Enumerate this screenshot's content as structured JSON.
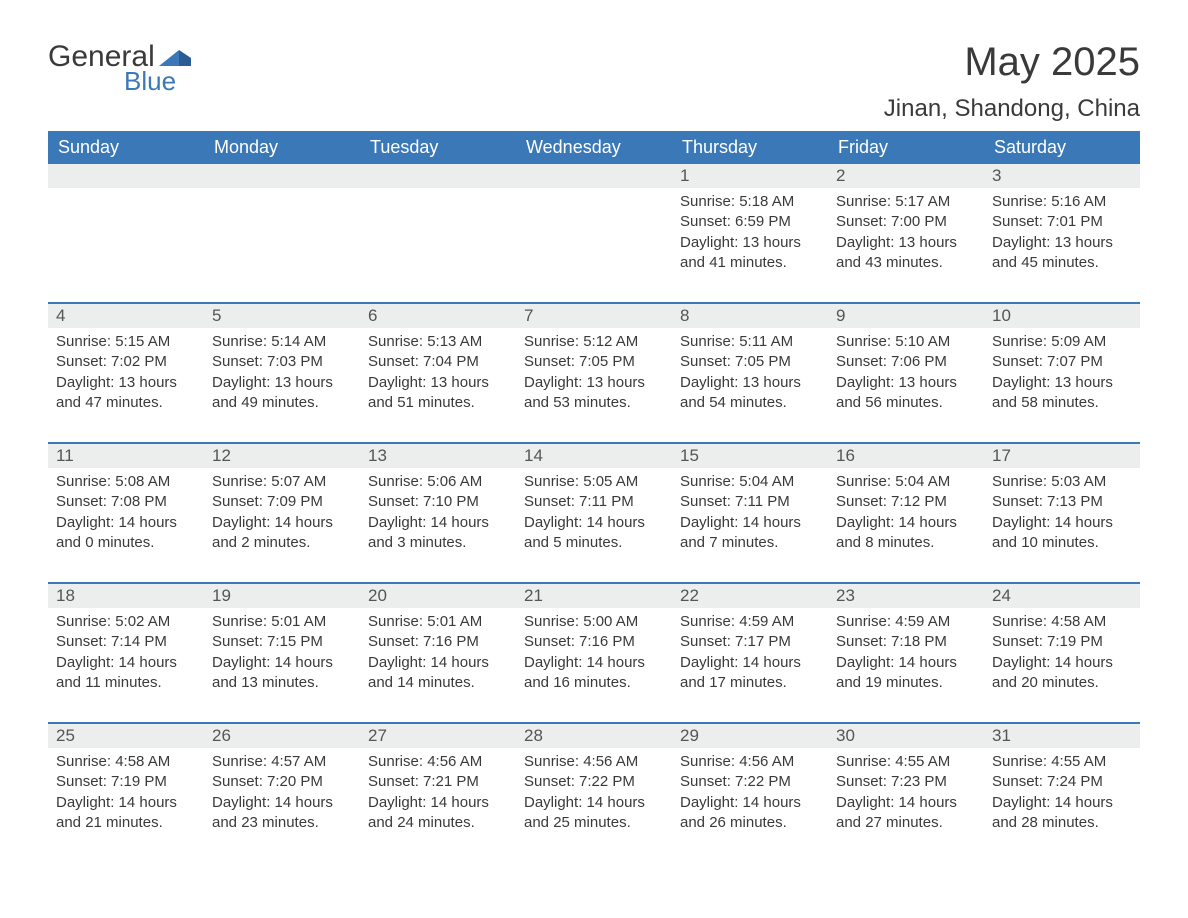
{
  "logo": {
    "text_general": "General",
    "text_blue": "Blue"
  },
  "title": "May 2025",
  "location": "Jinan, Shandong, China",
  "colors": {
    "header_bg": "#3b78b7",
    "header_text": "#ffffff",
    "daynum_bg": "#eceded",
    "daynum_border": "#3b78b7",
    "body_text": "#3a3a3a",
    "logo_blue": "#3b78b7"
  },
  "day_headers": [
    "Sunday",
    "Monday",
    "Tuesday",
    "Wednesday",
    "Thursday",
    "Friday",
    "Saturday"
  ],
  "weeks": [
    [
      null,
      null,
      null,
      null,
      {
        "n": "1",
        "sunrise": "5:18 AM",
        "sunset": "6:59 PM",
        "day_h": "13",
        "day_m": "41"
      },
      {
        "n": "2",
        "sunrise": "5:17 AM",
        "sunset": "7:00 PM",
        "day_h": "13",
        "day_m": "43"
      },
      {
        "n": "3",
        "sunrise": "5:16 AM",
        "sunset": "7:01 PM",
        "day_h": "13",
        "day_m": "45"
      }
    ],
    [
      {
        "n": "4",
        "sunrise": "5:15 AM",
        "sunset": "7:02 PM",
        "day_h": "13",
        "day_m": "47"
      },
      {
        "n": "5",
        "sunrise": "5:14 AM",
        "sunset": "7:03 PM",
        "day_h": "13",
        "day_m": "49"
      },
      {
        "n": "6",
        "sunrise": "5:13 AM",
        "sunset": "7:04 PM",
        "day_h": "13",
        "day_m": "51"
      },
      {
        "n": "7",
        "sunrise": "5:12 AM",
        "sunset": "7:05 PM",
        "day_h": "13",
        "day_m": "53"
      },
      {
        "n": "8",
        "sunrise": "5:11 AM",
        "sunset": "7:05 PM",
        "day_h": "13",
        "day_m": "54"
      },
      {
        "n": "9",
        "sunrise": "5:10 AM",
        "sunset": "7:06 PM",
        "day_h": "13",
        "day_m": "56"
      },
      {
        "n": "10",
        "sunrise": "5:09 AM",
        "sunset": "7:07 PM",
        "day_h": "13",
        "day_m": "58"
      }
    ],
    [
      {
        "n": "11",
        "sunrise": "5:08 AM",
        "sunset": "7:08 PM",
        "day_h": "14",
        "day_m": "0"
      },
      {
        "n": "12",
        "sunrise": "5:07 AM",
        "sunset": "7:09 PM",
        "day_h": "14",
        "day_m": "2"
      },
      {
        "n": "13",
        "sunrise": "5:06 AM",
        "sunset": "7:10 PM",
        "day_h": "14",
        "day_m": "3"
      },
      {
        "n": "14",
        "sunrise": "5:05 AM",
        "sunset": "7:11 PM",
        "day_h": "14",
        "day_m": "5"
      },
      {
        "n": "15",
        "sunrise": "5:04 AM",
        "sunset": "7:11 PM",
        "day_h": "14",
        "day_m": "7"
      },
      {
        "n": "16",
        "sunrise": "5:04 AM",
        "sunset": "7:12 PM",
        "day_h": "14",
        "day_m": "8"
      },
      {
        "n": "17",
        "sunrise": "5:03 AM",
        "sunset": "7:13 PM",
        "day_h": "14",
        "day_m": "10"
      }
    ],
    [
      {
        "n": "18",
        "sunrise": "5:02 AM",
        "sunset": "7:14 PM",
        "day_h": "14",
        "day_m": "11"
      },
      {
        "n": "19",
        "sunrise": "5:01 AM",
        "sunset": "7:15 PM",
        "day_h": "14",
        "day_m": "13"
      },
      {
        "n": "20",
        "sunrise": "5:01 AM",
        "sunset": "7:16 PM",
        "day_h": "14",
        "day_m": "14"
      },
      {
        "n": "21",
        "sunrise": "5:00 AM",
        "sunset": "7:16 PM",
        "day_h": "14",
        "day_m": "16"
      },
      {
        "n": "22",
        "sunrise": "4:59 AM",
        "sunset": "7:17 PM",
        "day_h": "14",
        "day_m": "17"
      },
      {
        "n": "23",
        "sunrise": "4:59 AM",
        "sunset": "7:18 PM",
        "day_h": "14",
        "day_m": "19"
      },
      {
        "n": "24",
        "sunrise": "4:58 AM",
        "sunset": "7:19 PM",
        "day_h": "14",
        "day_m": "20"
      }
    ],
    [
      {
        "n": "25",
        "sunrise": "4:58 AM",
        "sunset": "7:19 PM",
        "day_h": "14",
        "day_m": "21"
      },
      {
        "n": "26",
        "sunrise": "4:57 AM",
        "sunset": "7:20 PM",
        "day_h": "14",
        "day_m": "23"
      },
      {
        "n": "27",
        "sunrise": "4:56 AM",
        "sunset": "7:21 PM",
        "day_h": "14",
        "day_m": "24"
      },
      {
        "n": "28",
        "sunrise": "4:56 AM",
        "sunset": "7:22 PM",
        "day_h": "14",
        "day_m": "25"
      },
      {
        "n": "29",
        "sunrise": "4:56 AM",
        "sunset": "7:22 PM",
        "day_h": "14",
        "day_m": "26"
      },
      {
        "n": "30",
        "sunrise": "4:55 AM",
        "sunset": "7:23 PM",
        "day_h": "14",
        "day_m": "27"
      },
      {
        "n": "31",
        "sunrise": "4:55 AM",
        "sunset": "7:24 PM",
        "day_h": "14",
        "day_m": "28"
      }
    ]
  ],
  "labels": {
    "sunrise": "Sunrise: ",
    "sunset": "Sunset: ",
    "daylight_prefix": "Daylight: ",
    "hours_word": " hours",
    "and_word": "and ",
    "minutes_word": " minutes."
  }
}
